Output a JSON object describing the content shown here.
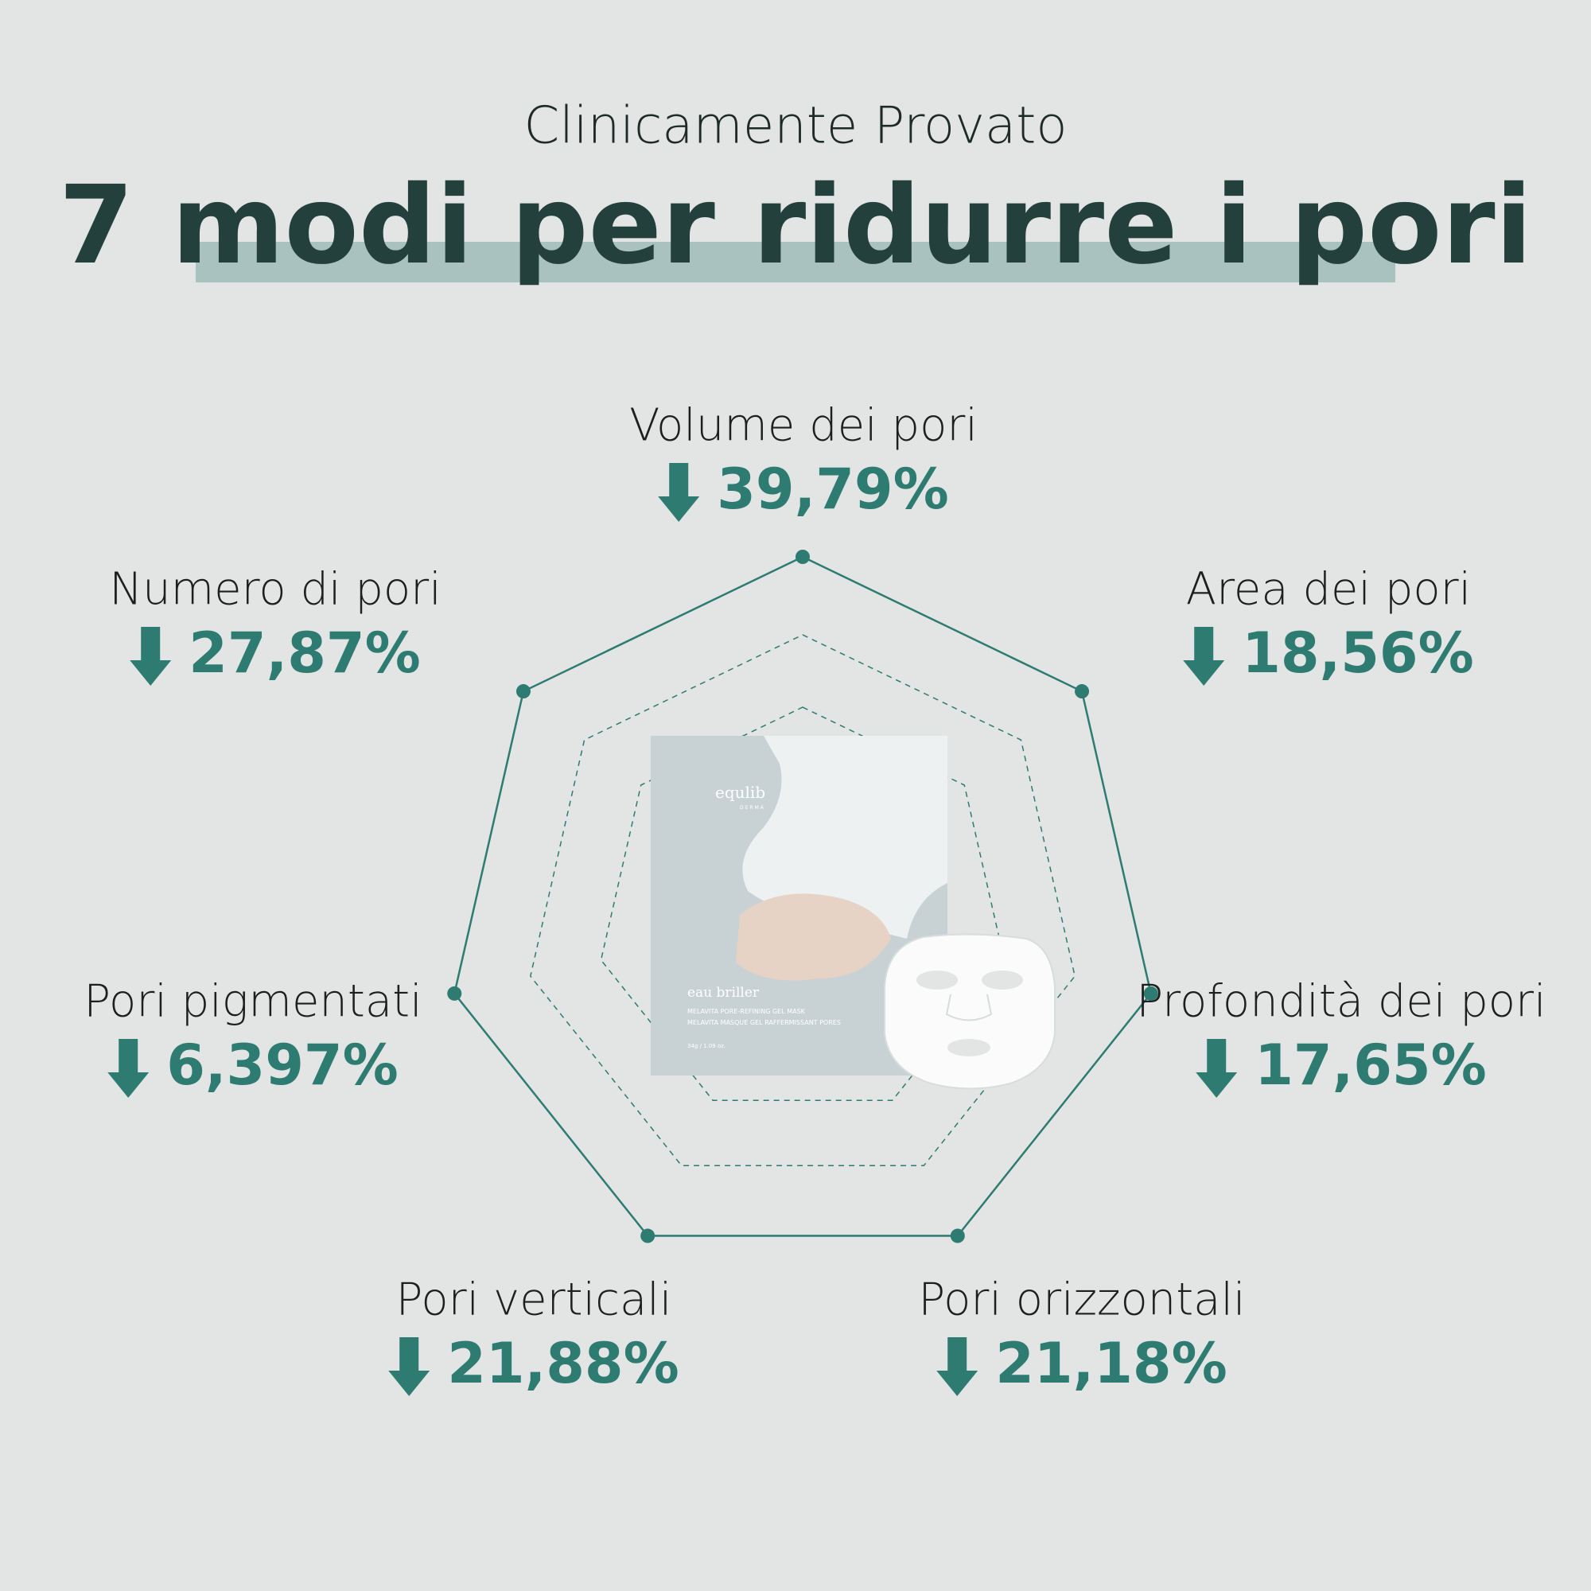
{
  "header": {
    "subtitle": "Clinicamente Provato",
    "title": "7 modi per ridurre i pori"
  },
  "metrics": [
    {
      "label": "Volume dei pori",
      "value": "39,79%"
    },
    {
      "label": "Area dei pori",
      "value": "18,56%"
    },
    {
      "label": "Profondità dei pori",
      "value": "17,65%"
    },
    {
      "label": "Pori orizzontali",
      "value": "21,18%"
    },
    {
      "label": "Pori verticali",
      "value": "21,88%"
    },
    {
      "label": "Pori pigmentati",
      "value": "6,397%"
    },
    {
      "label": "Numero di pori",
      "value": "27,87%"
    }
  ],
  "product": {
    "brand": "equlib",
    "sub_brand": "DERMA",
    "name": "eau briller",
    "line1": "MELAVITA PORE-REFINING GEL MASK",
    "line2": "MELAVITA MASQUE GEL RAFFERMISSANT PORES",
    "weight": "34g / 1.09 oz."
  }
}
